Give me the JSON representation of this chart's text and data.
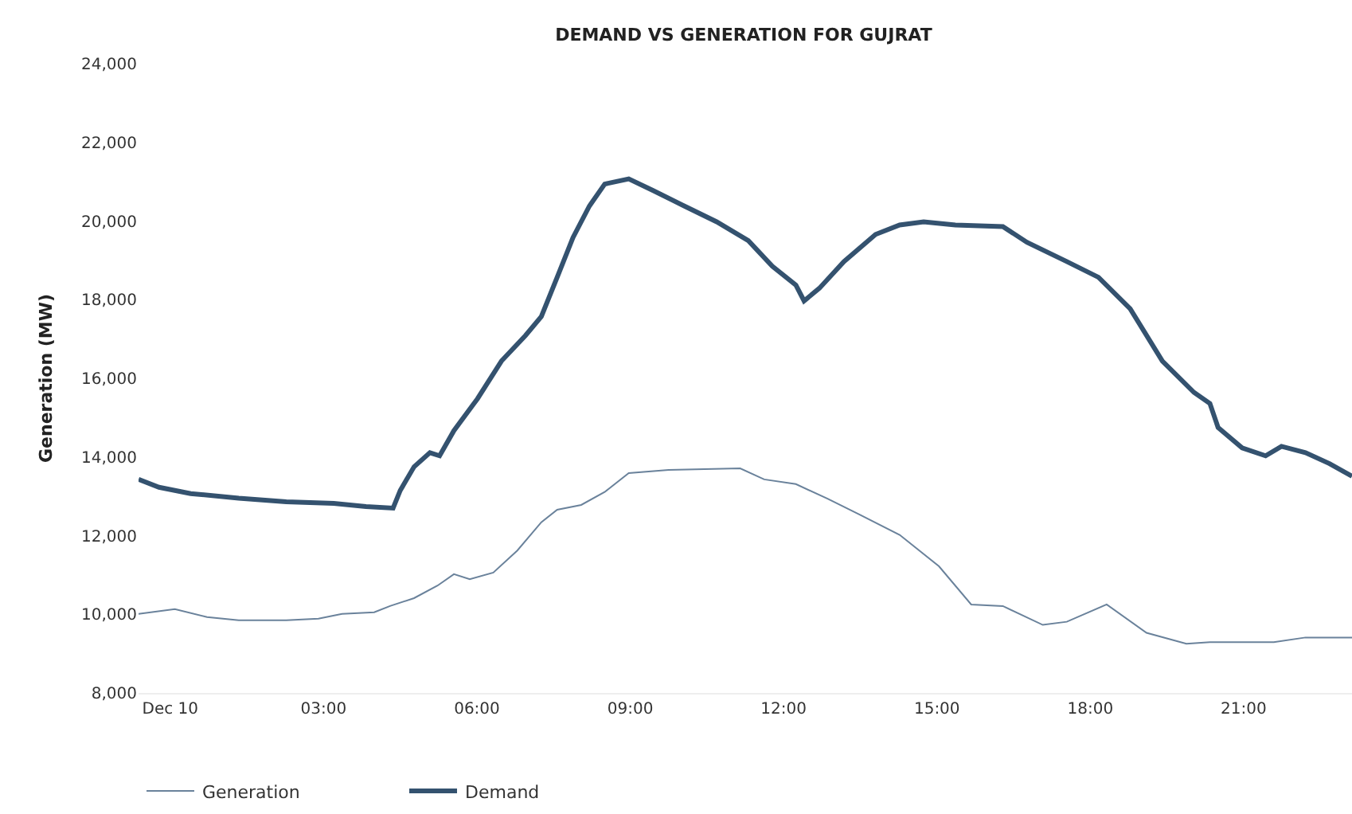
{
  "chart_data": {
    "type": "line",
    "title": "DEMAND VS GENERATION FOR GUJRAT",
    "ylabel": "Generation (MW)",
    "xlim": [
      -0.62,
      23.12
    ],
    "xticks": [
      {
        "value": 0,
        "label": "Dec 10"
      },
      {
        "value": 3,
        "label": "03:00"
      },
      {
        "value": 6,
        "label": "06:00"
      },
      {
        "value": 9,
        "label": "09:00"
      },
      {
        "value": 12,
        "label": "12:00"
      },
      {
        "value": 15,
        "label": "15:00"
      },
      {
        "value": 18,
        "label": "18:00"
      },
      {
        "value": 21,
        "label": "21:00"
      }
    ],
    "ylim": [
      8000,
      24000
    ],
    "yticks": [
      {
        "value": 8000,
        "label": "8,000"
      },
      {
        "value": 10000,
        "label": "10,000"
      },
      {
        "value": 12000,
        "label": "12,000"
      },
      {
        "value": 14000,
        "label": "14,000"
      },
      {
        "value": 16000,
        "label": "16,000"
      },
      {
        "value": 18000,
        "label": "18,000"
      },
      {
        "value": 20000,
        "label": "20,000"
      },
      {
        "value": 22000,
        "label": "22,000"
      },
      {
        "value": 24000,
        "label": "24,000"
      }
    ],
    "legend": "bottom left",
    "marker": "none",
    "line_style": "solid",
    "series": [
      {
        "name": "Generation",
        "color": "#6a829b",
        "x": [
          -0.62,
          0.09,
          0.72,
          1.34,
          2.27,
          2.9,
          3.36,
          3.99,
          4.3,
          4.77,
          5.23,
          5.55,
          5.86,
          6.32,
          6.79,
          7.26,
          7.57,
          8.04,
          8.5,
          8.97,
          9.75,
          11.15,
          11.62,
          12.24,
          12.86,
          13.48,
          14.27,
          15.04,
          15.67,
          16.29,
          17.07,
          17.54,
          18.32,
          19.1,
          19.88,
          20.34,
          21.59,
          22.21,
          23.12
        ],
        "values": [
          10010,
          10130,
          9930,
          9850,
          9850,
          9890,
          10010,
          10050,
          10210,
          10410,
          10730,
          11020,
          10890,
          11060,
          11620,
          12340,
          12660,
          12780,
          13110,
          13590,
          13670,
          13710,
          13430,
          13310,
          12940,
          12540,
          12020,
          11220,
          10250,
          10210,
          9730,
          9810,
          10250,
          9530,
          9250,
          9290,
          9290,
          9410,
          9410
        ]
      },
      {
        "name": "Demand",
        "color": "#34526f",
        "x": [
          -0.62,
          -0.22,
          0.4,
          1.34,
          2.27,
          3.2,
          3.83,
          4.36,
          4.5,
          4.77,
          5.08,
          5.27,
          5.55,
          6.01,
          6.48,
          6.95,
          7.26,
          7.57,
          7.88,
          8.2,
          8.5,
          8.97,
          9.44,
          10.06,
          10.69,
          11.31,
          11.78,
          12.24,
          12.4,
          12.7,
          13.18,
          13.8,
          14.27,
          14.74,
          15.36,
          16.29,
          16.76,
          17.54,
          18.16,
          18.78,
          19.41,
          20.03,
          20.34,
          20.5,
          20.97,
          21.43,
          21.74,
          22.21,
          22.68,
          23.12
        ],
        "values": [
          13430,
          13230,
          13070,
          12950,
          12860,
          12820,
          12740,
          12700,
          13150,
          13750,
          14110,
          14030,
          14670,
          15480,
          16440,
          17090,
          17570,
          18570,
          19580,
          20380,
          20940,
          21070,
          20780,
          20380,
          19980,
          19500,
          18850,
          18370,
          17970,
          18290,
          18970,
          19660,
          19900,
          19980,
          19900,
          19860,
          19460,
          18970,
          18570,
          17770,
          16440,
          15640,
          15360,
          14750,
          14230,
          14030,
          14270,
          14110,
          13830,
          13510
        ]
      }
    ]
  }
}
